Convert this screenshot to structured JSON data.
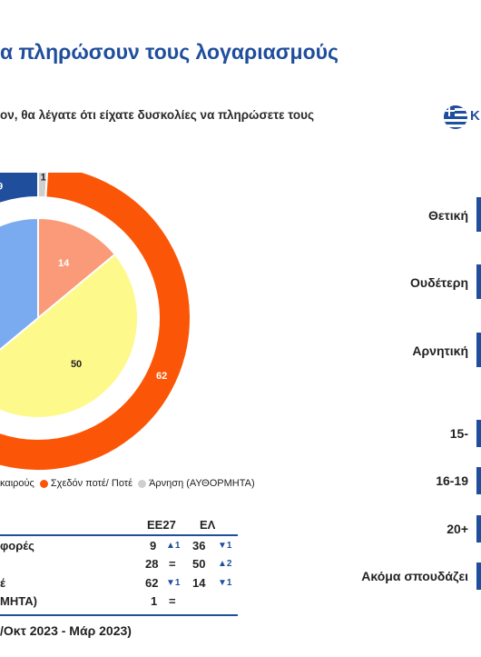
{
  "title": "α πληρώσουν τους λογαριασμούς",
  "question": "ον, θα λέγατε ότι είχατε δυσκολίες να πληρώσετε τους",
  "flag_label": "Κ",
  "colors": {
    "brand_blue": "#1f4e9d",
    "orange": "#fb5607",
    "salmon": "#fb9a78",
    "yellow": "#fdf98a",
    "light_blue": "#7aaaf0",
    "gray": "#cfcfcf"
  },
  "chart_data": [
    {
      "type": "pie",
      "title": "",
      "ring": "outer",
      "slices": [
        {
          "label": "",
          "value": 9,
          "color": "#1f4e9d"
        },
        {
          "label": "Άρνηση (ΑΥΘΟΡΜΗΤΑ)",
          "value": 1,
          "color": "#cfcfcf"
        },
        {
          "label": "Σχεδόν ποτέ/ Ποτέ",
          "value": 62,
          "color": "#fb5607"
        },
        {
          "label": "καιρούς",
          "value": 28,
          "color": "#ffffff"
        }
      ]
    },
    {
      "type": "pie",
      "title": "",
      "ring": "inner",
      "slices": [
        {
          "label": "",
          "value": 14,
          "color": "#fb9a78"
        },
        {
          "label": "",
          "value": 50,
          "color": "#fdf98a"
        },
        {
          "label": "",
          "value": 36,
          "color": "#7aaaf0"
        }
      ]
    }
  ],
  "legend": {
    "item1": "καιρούς",
    "item2": "Σχεδόν ποτέ/ Ποτέ",
    "item3": "Άρνηση (ΑΥΘΟΡΜΗΤΑ)"
  },
  "right_labels": [
    "Θετική",
    "Ουδέτερη",
    "Αρνητική",
    "15-",
    "16-19",
    "20+",
    "Ακόμα σπουδάζει"
  ],
  "table": {
    "headers": [
      "ΕΕ27",
      "ΕΛ"
    ],
    "rows": [
      {
        "label": "φορές",
        "eu": "9",
        "eu_mark": "▲1",
        "gr": "36",
        "gr_mark": "▼1"
      },
      {
        "label": "",
        "eu": "28",
        "eu_mark": "=",
        "gr": "50",
        "gr_mark": "▲2"
      },
      {
        "label": "έ",
        "eu": "62",
        "eu_mark": "▼1",
        "gr": "14",
        "gr_mark": "▼1"
      },
      {
        "label": "ΜΗΤΑ)",
        "eu": "1",
        "eu_mark": "=",
        "gr": "",
        "gr_mark": ""
      }
    ]
  },
  "note": "/Οκτ 2023 - Μάρ 2023)"
}
